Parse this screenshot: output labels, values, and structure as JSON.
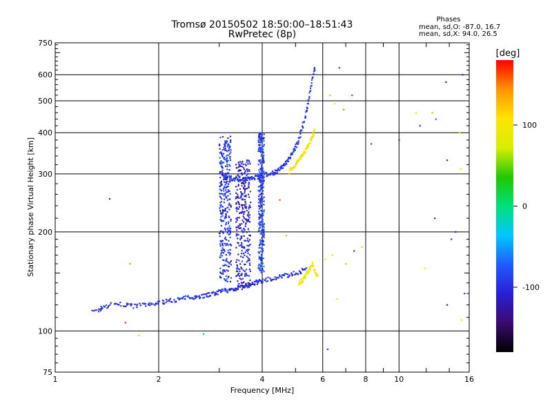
{
  "chart_data": {
    "type": "scatter",
    "title": "Tromsø 20150502 18:50:00–18:51:43",
    "subtitle": "RwPretec (8p)",
    "xlabel": "Frequency [MHz]",
    "ylabel": "Stationary phase Virtual Height [km]",
    "x_scale": "log",
    "y_scale": "log",
    "xlim": [
      1,
      16
    ],
    "ylim": [
      75,
      750
    ],
    "x_ticks": [
      1,
      2,
      4,
      6,
      8,
      10,
      16
    ],
    "y_ticks": [
      75,
      100,
      200,
      300,
      400,
      500,
      600,
      750
    ],
    "grid": true,
    "stats": {
      "heading": "Phases",
      "line1": "mean, sd,O: -87.0, 16.7",
      "line2": "mean, sd,X:  94.0, 26.5"
    },
    "colorbar": {
      "label": "[deg]",
      "range": [
        -180,
        180
      ],
      "ticks": [
        -100,
        0,
        100
      ],
      "colors": [
        "#000000",
        "#3b0a6e",
        "#2a1fd6",
        "#1f5cff",
        "#00c8ff",
        "#00e07a",
        "#22c800",
        "#d8ef00",
        "#ffe400",
        "#ff9400",
        "#ff0000"
      ]
    },
    "traces": [
      {
        "name": "O-trace low",
        "freq": [
          1.3,
          1.35,
          1.4,
          1.5,
          1.6,
          1.7,
          1.8,
          1.9,
          2.0,
          2.1,
          2.2,
          2.3,
          2.4,
          2.5,
          2.6,
          2.7,
          2.8,
          2.9,
          3.0,
          3.1,
          3.2,
          3.3,
          3.4,
          3.5,
          3.6,
          3.7,
          3.8,
          3.9,
          4.0,
          4.2,
          4.4,
          4.6,
          4.8,
          5.0,
          5.2,
          5.4
        ],
        "height": [
          114,
          117,
          119,
          121,
          120,
          119,
          120,
          120,
          122,
          123,
          124,
          125,
          126,
          127,
          127,
          128,
          129,
          130,
          131,
          133,
          133,
          134,
          135,
          136,
          137,
          138,
          140,
          141,
          142,
          144,
          145,
          147,
          148,
          150,
          152,
          155
        ],
        "phase": -100
      },
      {
        "name": "F-layer cusp",
        "freq": [
          3.05,
          3.1,
          3.2,
          3.3,
          3.4,
          3.5,
          3.6,
          3.7,
          3.8,
          3.9,
          4.0,
          4.1,
          4.2,
          4.3,
          4.4,
          4.5,
          4.6,
          4.7,
          4.8,
          4.9,
          5.0,
          5.1,
          5.2,
          5.3,
          5.4,
          5.5,
          5.6,
          5.7
        ],
        "height": [
          300,
          295,
          292,
          290,
          289,
          289,
          290,
          291,
          292,
          294,
          296,
          298,
          300,
          302,
          305,
          310,
          318,
          326,
          336,
          348,
          362,
          380,
          405,
          435,
          475,
          525,
          585,
          640
        ],
        "phase": -95
      },
      {
        "name": "X-trace",
        "freq": [
          4.8,
          4.9,
          5.0,
          5.1,
          5.2,
          5.3,
          5.4,
          5.5,
          5.6,
          5.7
        ],
        "height": [
          305,
          315,
          320,
          330,
          338,
          348,
          360,
          375,
          390,
          410
        ],
        "phase": 100
      },
      {
        "name": "sporadic X",
        "freq": [
          5.1,
          5.2,
          5.3,
          5.4,
          5.5,
          5.6,
          5.7,
          5.8
        ],
        "height": [
          140,
          142,
          145,
          150,
          155,
          160,
          150,
          145
        ],
        "phase": 95
      }
    ],
    "spread_columns": [
      {
        "freq": [
          3.0,
          3.25
        ],
        "height": [
          140,
          390
        ],
        "phase": -95
      },
      {
        "freq": [
          3.35,
          3.7
        ],
        "height": [
          135,
          330
        ],
        "phase": -110
      },
      {
        "freq": [
          3.9,
          4.05
        ],
        "height": [
          150,
          400
        ],
        "phase": -90
      }
    ],
    "scatter_points": [
      {
        "freq": 1.44,
        "height": 252,
        "phase": -110
      },
      {
        "freq": 1.65,
        "height": 160,
        "phase": 140
      },
      {
        "freq": 1.6,
        "height": 106,
        "phase": 170
      },
      {
        "freq": 1.75,
        "height": 97,
        "phase": 120
      },
      {
        "freq": 2.7,
        "height": 98,
        "phase": -20
      },
      {
        "freq": 6.2,
        "height": 88,
        "phase": -95
      },
      {
        "freq": 6.3,
        "height": 520,
        "phase": 60
      },
      {
        "freq": 6.5,
        "height": 490,
        "phase": 100
      },
      {
        "freq": 6.9,
        "height": 470,
        "phase": 150
      },
      {
        "freq": 7.3,
        "height": 520,
        "phase": 170
      },
      {
        "freq": 6.7,
        "height": 630,
        "phase": -90
      },
      {
        "freq": 8.3,
        "height": 370,
        "phase": -95
      },
      {
        "freq": 10.0,
        "height": 380,
        "phase": -100
      },
      {
        "freq": 11.2,
        "height": 460,
        "phase": 110
      },
      {
        "freq": 11.5,
        "height": 420,
        "phase": -100
      },
      {
        "freq": 12.5,
        "height": 460,
        "phase": 130
      },
      {
        "freq": 12.8,
        "height": 440,
        "phase": 170
      },
      {
        "freq": 13.7,
        "height": 570,
        "phase": -130
      },
      {
        "freq": 13.8,
        "height": 330,
        "phase": -100
      },
      {
        "freq": 14.2,
        "height": 190,
        "phase": -100
      },
      {
        "freq": 14.6,
        "height": 200,
        "phase": -110
      },
      {
        "freq": 15.0,
        "height": 400,
        "phase": 120
      },
      {
        "freq": 15.1,
        "height": 310,
        "phase": 80
      },
      {
        "freq": 15.3,
        "height": 600,
        "phase": -100
      },
      {
        "freq": 12.7,
        "height": 220,
        "phase": -100
      },
      {
        "freq": 11.9,
        "height": 155,
        "phase": 110
      },
      {
        "freq": 13.8,
        "height": 120,
        "phase": -110
      },
      {
        "freq": 15.2,
        "height": 108,
        "phase": 110
      },
      {
        "freq": 15.5,
        "height": 130,
        "phase": -100
      },
      {
        "freq": 4.0,
        "height": 205,
        "phase": 10
      },
      {
        "freq": 4.5,
        "height": 250,
        "phase": 160
      },
      {
        "freq": 4.7,
        "height": 195,
        "phase": 130
      },
      {
        "freq": 7.0,
        "height": 160,
        "phase": 60
      },
      {
        "freq": 7.4,
        "height": 175,
        "phase": -100
      },
      {
        "freq": 7.8,
        "height": 180,
        "phase": 120
      },
      {
        "freq": 6.4,
        "height": 170,
        "phase": 100
      },
      {
        "freq": 6.1,
        "height": 165,
        "phase": 110
      },
      {
        "freq": 6.6,
        "height": 125,
        "phase": 100
      }
    ]
  }
}
